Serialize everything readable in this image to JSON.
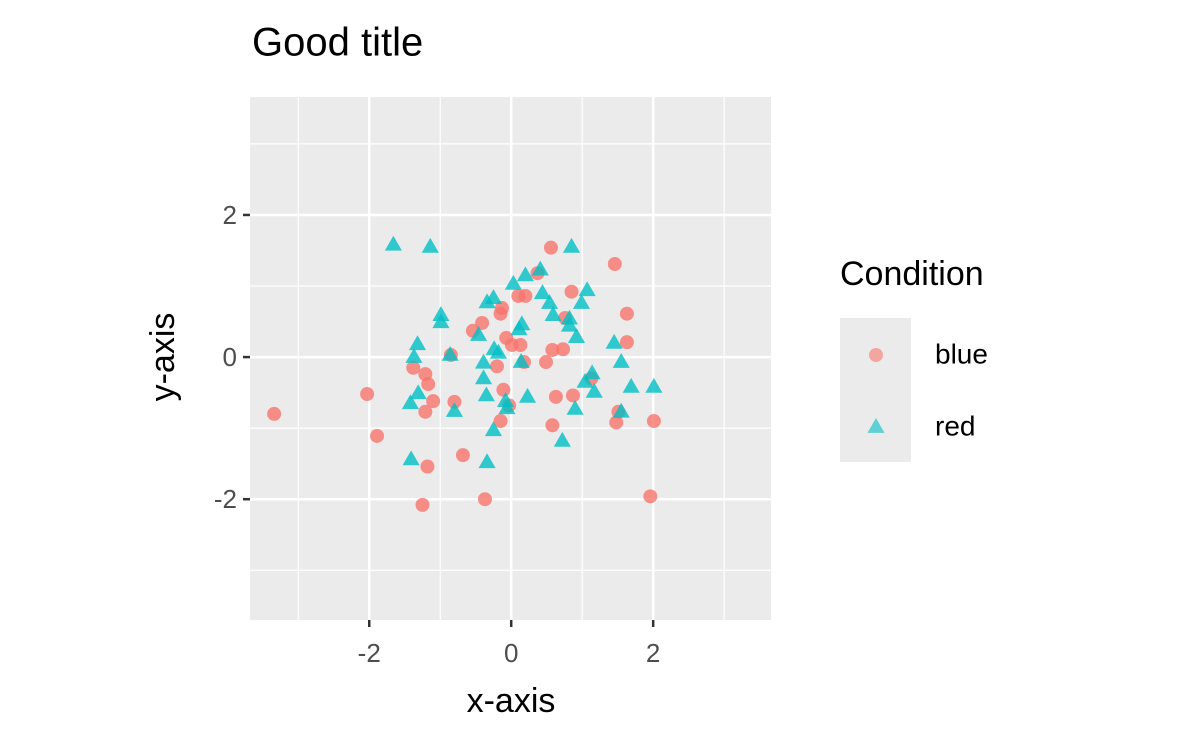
{
  "chart_data": {
    "type": "scatter",
    "title": "Good title",
    "x_label": "x-axis",
    "y_label": "y-axis",
    "legend_title": "Condition",
    "legend_position": "right",
    "grid": true,
    "xlim": [
      -3.68,
      3.66
    ],
    "ylim": [
      -3.7,
      3.66
    ],
    "xticks": [
      -2,
      0,
      2
    ],
    "yticks": [
      -2,
      0,
      2
    ],
    "xminor": [
      -3,
      -1,
      1,
      3
    ],
    "yminor": [
      -3,
      -1,
      1,
      3
    ],
    "series": [
      {
        "name": "blue",
        "color": "#F8766D",
        "shape": "circle",
        "x": [
          -3.34,
          -2.03,
          -1.89,
          -1.38,
          -1.21,
          -1.17,
          -1.21,
          -1.1,
          -1.18,
          -1.25,
          -0.85,
          -0.8,
          -0.68,
          -0.54,
          -0.41,
          -0.37,
          -0.2,
          -0.15,
          -0.13,
          -0.11,
          -0.15,
          -0.07,
          -0.03,
          0.01,
          0.1,
          0.13,
          0.2,
          0.18,
          0.37,
          0.49,
          0.56,
          0.58,
          0.58,
          0.63,
          0.73,
          0.76,
          0.85,
          0.87,
          1.46,
          1.51,
          1.48,
          1.63,
          1.63,
          2.01,
          1.96,
          1.13
        ],
        "values": [
          -0.8,
          -0.52,
          -1.11,
          -0.15,
          -0.24,
          -0.38,
          -0.77,
          -0.62,
          -1.54,
          -2.08,
          0.03,
          -0.63,
          -1.38,
          0.37,
          0.48,
          -2.0,
          -0.13,
          0.61,
          0.69,
          -0.46,
          -0.9,
          0.27,
          -0.68,
          0.17,
          0.86,
          0.17,
          0.86,
          -0.07,
          1.18,
          -0.07,
          1.54,
          0.1,
          -0.96,
          -0.56,
          0.11,
          0.55,
          0.92,
          -0.54,
          1.31,
          -0.77,
          -0.92,
          0.61,
          0.21,
          -0.9,
          -1.96,
          -0.3
        ]
      },
      {
        "name": "red",
        "color": "#00BFC4",
        "shape": "triangle",
        "x": [
          -1.66,
          -1.14,
          -1.42,
          -1.41,
          -1.37,
          -1.32,
          -1.31,
          -0.99,
          -0.99,
          -0.86,
          -0.8,
          -0.46,
          -0.34,
          -0.25,
          -0.24,
          -0.39,
          -0.39,
          -0.35,
          -0.34,
          -0.25,
          -0.18,
          -0.08,
          -0.06,
          0.03,
          0.11,
          0.15,
          0.2,
          0.14,
          0.23,
          0.41,
          0.44,
          0.54,
          0.59,
          0.72,
          0.85,
          0.82,
          0.82,
          0.92,
          0.9,
          0.99,
          1.07,
          1.04,
          1.14,
          1.17,
          1.45,
          1.55,
          1.55,
          1.69,
          2.01
        ],
        "values": [
          1.58,
          1.55,
          -0.65,
          -1.44,
          0.0,
          0.18,
          -0.51,
          0.59,
          0.49,
          0.03,
          -0.76,
          0.31,
          0.77,
          0.83,
          0.11,
          -0.08,
          -0.3,
          -0.54,
          -1.48,
          -1.03,
          0.06,
          -0.62,
          -0.72,
          1.03,
          0.39,
          0.46,
          1.15,
          -0.07,
          -0.56,
          1.23,
          0.9,
          0.76,
          0.59,
          -1.18,
          1.55,
          0.54,
          0.44,
          0.28,
          -0.73,
          0.76,
          0.94,
          -0.35,
          -0.23,
          -0.49,
          0.2,
          -0.07,
          -0.77,
          -0.42,
          -0.42
        ]
      }
    ]
  }
}
